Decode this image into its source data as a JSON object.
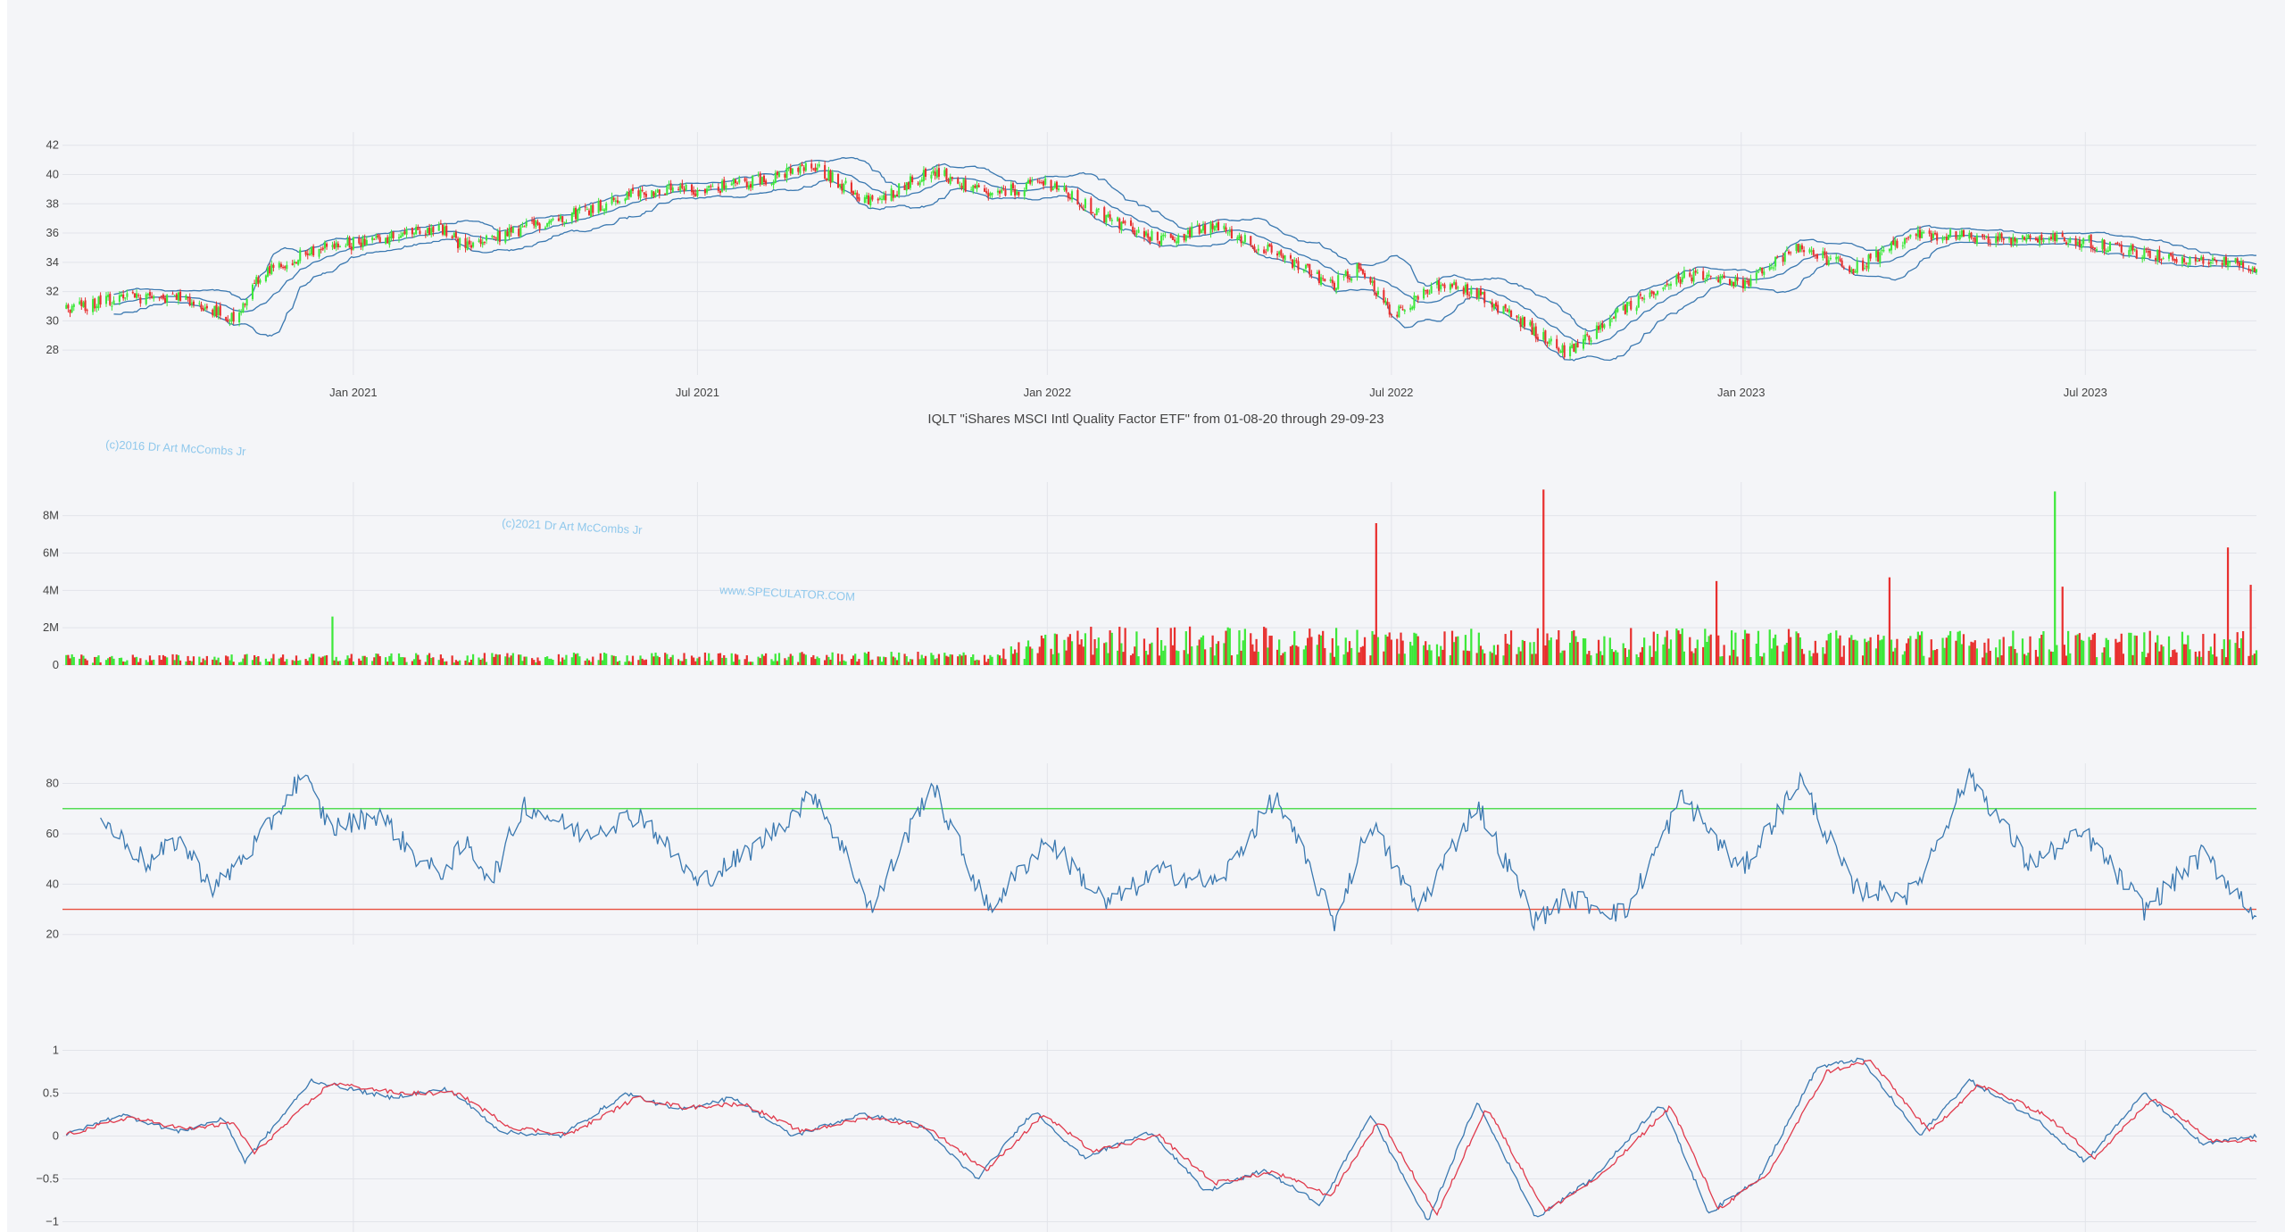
{
  "colors": {
    "background": "#f4f5f8",
    "grid": "#e2e4ea",
    "up": "#3de83a",
    "down": "#e8302f",
    "line": "#3a78b0",
    "signal": "#e03a4c",
    "rsi_upper": "#55dd55",
    "rsi_lower": "#e8503f",
    "watermark": "#8fc8ec"
  },
  "watermarks": [
    "(c)2016 Dr Art McCombs Jr",
    "(c)2021 Dr Art McCombs Jr",
    "www.SPECULATOR.COM"
  ],
  "chart_data": [
    {
      "id": "price",
      "type": "candlestick",
      "title": "IQLT \"iShares MSCI Intl Quality Factor ETF\" from 01-08-20 through 29-09-23",
      "x_range": [
        "2020-08-01",
        "2023-09-29"
      ],
      "x_ticks": [
        "2021-01-01",
        "2021-07-01",
        "2022-01-01",
        "2022-07-01",
        "2023-01-01",
        "2023-07-01"
      ],
      "x_tick_labels": [
        "Jan 2021",
        "Jul 2021",
        "Jan 2022",
        "Jul 2022",
        "Jan 2023",
        "Jul 2023"
      ],
      "y_ticks": [
        28,
        30,
        32,
        34,
        36,
        38,
        40,
        42
      ],
      "ylim": [
        26.3,
        42.9
      ],
      "overlay": "bollinger bands (upper, middle, lower)",
      "close_anchors": [
        [
          "2020-08-01",
          30.8
        ],
        [
          "2020-09-01",
          31.5
        ],
        [
          "2020-10-01",
          31.6
        ],
        [
          "2020-10-30",
          30.2
        ],
        [
          "2020-11-15",
          33.5
        ],
        [
          "2020-12-15",
          35.0
        ],
        [
          "2021-01-15",
          35.5
        ],
        [
          "2021-02-15",
          36.4
        ],
        [
          "2021-03-01",
          35.0
        ],
        [
          "2021-04-01",
          36.3
        ],
        [
          "2021-05-01",
          37.5
        ],
        [
          "2021-06-01",
          38.8
        ],
        [
          "2021-07-01",
          38.9
        ],
        [
          "2021-08-01",
          39.6
        ],
        [
          "2021-09-01",
          40.5
        ],
        [
          "2021-10-01",
          38.0
        ],
        [
          "2021-11-01",
          40.3
        ],
        [
          "2021-12-01",
          38.5
        ],
        [
          "2022-01-01",
          39.5
        ],
        [
          "2022-02-01",
          37.0
        ],
        [
          "2022-03-01",
          35.5
        ],
        [
          "2022-04-01",
          36.5
        ],
        [
          "2022-05-01",
          34.5
        ],
        [
          "2022-06-01",
          32.5
        ],
        [
          "2022-06-15",
          33.8
        ],
        [
          "2022-07-01",
          30.5
        ],
        [
          "2022-08-01",
          32.8
        ],
        [
          "2022-09-01",
          30.5
        ],
        [
          "2022-10-01",
          27.8
        ],
        [
          "2022-11-01",
          30.8
        ],
        [
          "2022-12-01",
          33.0
        ],
        [
          "2023-01-01",
          32.5
        ],
        [
          "2023-02-01",
          35.0
        ],
        [
          "2023-03-01",
          33.5
        ],
        [
          "2023-04-01",
          35.8
        ],
        [
          "2023-05-01",
          35.8
        ],
        [
          "2023-06-01",
          35.5
        ],
        [
          "2023-07-01",
          35.5
        ],
        [
          "2023-08-01",
          34.5
        ],
        [
          "2023-09-01",
          34.2
        ],
        [
          "2023-09-29",
          33.6
        ]
      ]
    },
    {
      "id": "volume",
      "type": "bar",
      "y_ticks": [
        0,
        2000000,
        4000000,
        6000000,
        8000000
      ],
      "y_tick_labels": [
        "0",
        "2M",
        "4M",
        "6M",
        "8M"
      ],
      "ylim": [
        0,
        9800000
      ],
      "base_level": [
        [
          "2020-08-01",
          350000
        ],
        [
          "2021-12-01",
          450000
        ],
        [
          "2022-01-15",
          1300000
        ],
        [
          "2023-09-29",
          1100000
        ]
      ],
      "spikes": [
        [
          "2020-12-20",
          2600000,
          "up"
        ],
        [
          "2022-06-24",
          7600000,
          "down"
        ],
        [
          "2022-09-20",
          9400000,
          "down"
        ],
        [
          "2022-12-20",
          4500000,
          "down"
        ],
        [
          "2023-03-20",
          4700000,
          "down"
        ],
        [
          "2023-06-16",
          9300000,
          "up"
        ],
        [
          "2023-06-20",
          4200000,
          "down"
        ],
        [
          "2023-09-15",
          6300000,
          "down"
        ],
        [
          "2023-09-27",
          4300000,
          "down"
        ]
      ]
    },
    {
      "id": "rsi",
      "type": "line",
      "y_ticks": [
        20,
        40,
        60,
        80
      ],
      "ylim": [
        16,
        88
      ],
      "upper_line": 70,
      "lower_line": 30,
      "anchors": [
        [
          "2020-08-21",
          66
        ],
        [
          "2020-09-15",
          48
        ],
        [
          "2020-10-01",
          58
        ],
        [
          "2020-10-20",
          38
        ],
        [
          "2020-11-15",
          60
        ],
        [
          "2020-12-05",
          84
        ],
        [
          "2020-12-20",
          62
        ],
        [
          "2021-01-15",
          68
        ],
        [
          "2021-02-01",
          52
        ],
        [
          "2021-02-15",
          44
        ],
        [
          "2021-03-01",
          56
        ],
        [
          "2021-03-15",
          42
        ],
        [
          "2021-04-01",
          72
        ],
        [
          "2021-05-01",
          60
        ],
        [
          "2021-06-01",
          68
        ],
        [
          "2021-07-01",
          40
        ],
        [
          "2021-08-01",
          55
        ],
        [
          "2021-09-01",
          76
        ],
        [
          "2021-10-01",
          30
        ],
        [
          "2021-11-01",
          80
        ],
        [
          "2021-12-01",
          30
        ],
        [
          "2022-01-01",
          58
        ],
        [
          "2022-02-01",
          32
        ],
        [
          "2022-03-01",
          45
        ],
        [
          "2022-04-01",
          40
        ],
        [
          "2022-05-01",
          75
        ],
        [
          "2022-06-01",
          25
        ],
        [
          "2022-06-20",
          65
        ],
        [
          "2022-07-15",
          30
        ],
        [
          "2022-08-15",
          72
        ],
        [
          "2022-09-15",
          25
        ],
        [
          "2022-10-01",
          35
        ],
        [
          "2022-11-01",
          28
        ],
        [
          "2022-12-01",
          75
        ],
        [
          "2023-01-01",
          45
        ],
        [
          "2023-02-01",
          82
        ],
        [
          "2023-03-01",
          38
        ],
        [
          "2023-04-01",
          36
        ],
        [
          "2023-05-01",
          84
        ],
        [
          "2023-06-01",
          48
        ],
        [
          "2023-07-01",
          60
        ],
        [
          "2023-08-01",
          30
        ],
        [
          "2023-09-01",
          52
        ],
        [
          "2023-09-29",
          28
        ]
      ]
    },
    {
      "id": "oscillator",
      "type": "line",
      "y_ticks": [
        -1,
        -0.5,
        0,
        0.5,
        1
      ],
      "y_tick_labels": [
        "−1",
        "−0.5",
        "0",
        "0.5",
        "1"
      ],
      "ylim": [
        -1.12,
        1.12
      ],
      "series": [
        {
          "color": "line",
          "anchors": [
            [
              "2020-08-01",
              0.0
            ],
            [
              "2020-09-01",
              0.25
            ],
            [
              "2020-10-01",
              0.05
            ],
            [
              "2020-10-25",
              0.2
            ],
            [
              "2020-11-05",
              -0.3
            ],
            [
              "2020-12-10",
              0.65
            ],
            [
              "2021-01-20",
              0.45
            ],
            [
              "2021-02-20",
              0.55
            ],
            [
              "2021-03-20",
              0.05
            ],
            [
              "2021-04-20",
              0.0
            ],
            [
              "2021-05-25",
              0.5
            ],
            [
              "2021-06-20",
              0.3
            ],
            [
              "2021-07-20",
              0.45
            ],
            [
              "2021-08-20",
              0.0
            ],
            [
              "2021-09-25",
              0.25
            ],
            [
              "2021-10-25",
              0.15
            ],
            [
              "2021-11-25",
              -0.5
            ],
            [
              "2021-12-25",
              0.3
            ],
            [
              "2022-01-20",
              -0.25
            ],
            [
              "2022-02-25",
              0.05
            ],
            [
              "2022-03-25",
              -0.65
            ],
            [
              "2022-04-25",
              -0.4
            ],
            [
              "2022-05-25",
              -0.8
            ],
            [
              "2022-06-20",
              0.25
            ],
            [
              "2022-07-20",
              -1.0
            ],
            [
              "2022-08-15",
              0.4
            ],
            [
              "2022-09-15",
              -0.95
            ],
            [
              "2022-10-15",
              -0.5
            ],
            [
              "2022-11-20",
              0.4
            ],
            [
              "2022-12-15",
              -0.9
            ],
            [
              "2023-01-10",
              -0.5
            ],
            [
              "2023-02-10",
              0.8
            ],
            [
              "2023-03-05",
              0.9
            ],
            [
              "2023-04-05",
              0.0
            ],
            [
              "2023-05-01",
              0.65
            ],
            [
              "2023-06-05",
              0.2
            ],
            [
              "2023-07-01",
              -0.3
            ],
            [
              "2023-08-01",
              0.5
            ],
            [
              "2023-09-01",
              -0.1
            ],
            [
              "2023-09-29",
              0.0
            ]
          ]
        },
        {
          "color": "signal",
          "anchors": [
            [
              "2020-08-01",
              0.0
            ],
            [
              "2020-09-05",
              0.22
            ],
            [
              "2020-10-05",
              0.08
            ],
            [
              "2020-10-30",
              0.15
            ],
            [
              "2020-11-10",
              -0.2
            ],
            [
              "2020-12-20",
              0.62
            ],
            [
              "2021-01-25",
              0.5
            ],
            [
              "2021-02-25",
              0.5
            ],
            [
              "2021-03-25",
              0.1
            ],
            [
              "2021-04-25",
              0.02
            ],
            [
              "2021-05-30",
              0.45
            ],
            [
              "2021-06-25",
              0.33
            ],
            [
              "2021-07-25",
              0.38
            ],
            [
              "2021-08-25",
              0.05
            ],
            [
              "2021-09-30",
              0.22
            ],
            [
              "2021-10-30",
              0.1
            ],
            [
              "2021-11-30",
              -0.4
            ],
            [
              "2021-12-30",
              0.25
            ],
            [
              "2022-01-25",
              -0.18
            ],
            [
              "2022-03-01",
              0.0
            ],
            [
              "2022-03-30",
              -0.55
            ],
            [
              "2022-04-30",
              -0.42
            ],
            [
              "2022-05-30",
              -0.7
            ],
            [
              "2022-06-25",
              0.2
            ],
            [
              "2022-07-25",
              -0.92
            ],
            [
              "2022-08-20",
              0.35
            ],
            [
              "2022-09-20",
              -0.88
            ],
            [
              "2022-10-20",
              -0.45
            ],
            [
              "2022-11-25",
              0.35
            ],
            [
              "2022-12-20",
              -0.85
            ],
            [
              "2023-01-15",
              -0.45
            ],
            [
              "2023-02-15",
              0.75
            ],
            [
              "2023-03-10",
              0.88
            ],
            [
              "2023-04-10",
              0.05
            ],
            [
              "2023-05-06",
              0.6
            ],
            [
              "2023-06-10",
              0.25
            ],
            [
              "2023-07-06",
              -0.25
            ],
            [
              "2023-08-06",
              0.45
            ],
            [
              "2023-09-06",
              -0.05
            ],
            [
              "2023-09-29",
              -0.05
            ]
          ]
        }
      ]
    }
  ]
}
